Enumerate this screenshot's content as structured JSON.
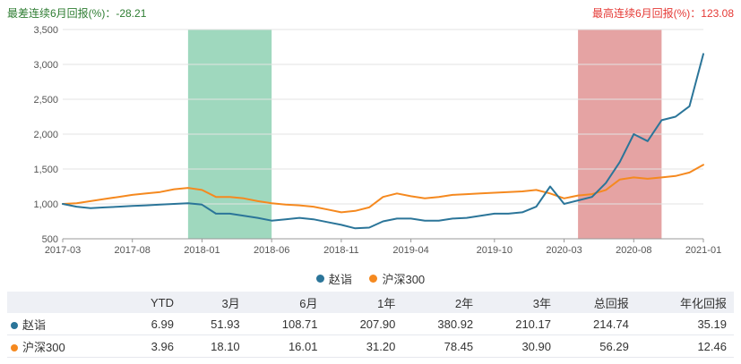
{
  "header": {
    "worst_label": "最差连续6月回报(%)：-28.21",
    "best_label": "最高连续6月回报(%)：123.08"
  },
  "colors": {
    "fund": "#2b7599",
    "index": "#f5891f",
    "worst_band": "#9fd8be",
    "best_band": "#e5a3a3",
    "worst_text": "#2e7d32",
    "best_text": "#e53935"
  },
  "chart_data": {
    "type": "line",
    "xlim": [
      "2017-03",
      "2021-01"
    ],
    "ylim": [
      500,
      3500
    ],
    "y_ticks": [
      500,
      1000,
      1500,
      2000,
      2500,
      3000,
      3500
    ],
    "y_tick_labels": [
      "500",
      "1,000",
      "1,500",
      "2,000",
      "2,500",
      "3,000",
      "3,500"
    ],
    "x_ticks": [
      "2017-03",
      "2017-08",
      "2018-01",
      "2018-06",
      "2018-11",
      "2019-04",
      "2019-10",
      "2020-03",
      "2020-08",
      "2021-01"
    ],
    "grid": true,
    "legend_position": "bottom",
    "bands": [
      {
        "kind": "worst",
        "start": "2017-12",
        "end": "2018-06"
      },
      {
        "kind": "best",
        "start": "2020-04",
        "end": "2020-10"
      }
    ],
    "x": [
      "2017-03",
      "2017-04",
      "2017-05",
      "2017-06",
      "2017-07",
      "2017-08",
      "2017-09",
      "2017-10",
      "2017-11",
      "2017-12",
      "2018-01",
      "2018-02",
      "2018-03",
      "2018-04",
      "2018-05",
      "2018-06",
      "2018-07",
      "2018-08",
      "2018-09",
      "2018-10",
      "2018-11",
      "2018-12",
      "2019-01",
      "2019-02",
      "2019-03",
      "2019-04",
      "2019-05",
      "2019-06",
      "2019-07",
      "2019-08",
      "2019-09",
      "2019-10",
      "2019-11",
      "2019-12",
      "2020-01",
      "2020-02",
      "2020-03",
      "2020-04",
      "2020-05",
      "2020-06",
      "2020-07",
      "2020-08",
      "2020-09",
      "2020-10",
      "2020-11",
      "2020-12",
      "2021-01"
    ],
    "series": [
      {
        "name": "赵诣",
        "values": [
          1000,
          960,
          940,
          950,
          960,
          970,
          980,
          990,
          1000,
          1010,
          990,
          860,
          860,
          830,
          800,
          760,
          780,
          800,
          780,
          740,
          700,
          650,
          660,
          750,
          790,
          790,
          760,
          760,
          790,
          800,
          830,
          860,
          860,
          880,
          960,
          1250,
          1000,
          1050,
          1100,
          1300,
          1600,
          2000,
          1900,
          2200,
          2250,
          2400,
          3150
        ]
      },
      {
        "name": "沪深300",
        "values": [
          1000,
          1010,
          1040,
          1070,
          1100,
          1130,
          1150,
          1170,
          1210,
          1230,
          1200,
          1100,
          1100,
          1080,
          1040,
          1010,
          990,
          980,
          960,
          920,
          880,
          900,
          950,
          1100,
          1150,
          1110,
          1080,
          1100,
          1130,
          1140,
          1150,
          1160,
          1170,
          1180,
          1200,
          1150,
          1080,
          1120,
          1140,
          1200,
          1350,
          1380,
          1360,
          1380,
          1400,
          1450,
          1560
        ]
      }
    ]
  },
  "legend": [
    {
      "label": "赵诣"
    },
    {
      "label": "沪深300"
    }
  ],
  "table": {
    "headers": [
      "",
      "YTD",
      "3月",
      "6月",
      "1年",
      "2年",
      "3年",
      "总回报",
      "年化回报"
    ],
    "rows": [
      {
        "name": "赵诣",
        "values": [
          "6.99",
          "51.93",
          "108.71",
          "207.90",
          "380.92",
          "210.17",
          "214.74",
          "35.19"
        ]
      },
      {
        "name": "沪深300",
        "values": [
          "3.96",
          "18.10",
          "16.01",
          "31.20",
          "78.45",
          "30.90",
          "56.29",
          "12.46"
        ]
      }
    ]
  }
}
